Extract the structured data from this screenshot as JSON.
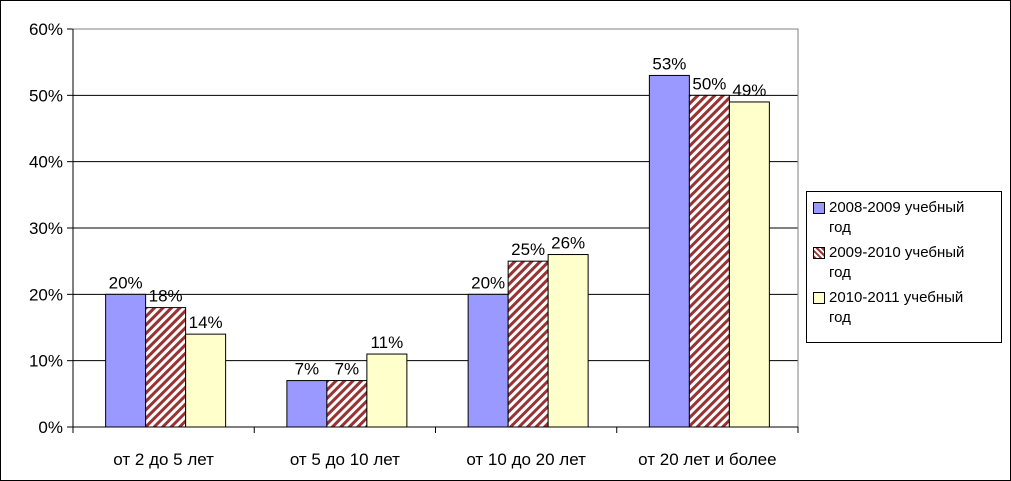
{
  "chart_data": {
    "type": "bar",
    "categories": [
      "от 2 до 5 лет",
      "от 5 до 10 лет",
      "от 10 до 20 лет",
      "от 20 лет и более"
    ],
    "series": [
      {
        "name": "2008-2009 учебный год",
        "values": [
          20,
          7,
          20,
          53
        ],
        "labels": [
          "20%",
          "7%",
          "20%",
          "53%"
        ],
        "color": "#9999FF",
        "pattern": "solid"
      },
      {
        "name": "2009-2010 учебный год",
        "values": [
          18,
          7,
          25,
          50
        ],
        "labels": [
          "18%",
          "7%",
          "25%",
          "50%"
        ],
        "color": "#993333",
        "pattern": "diagonal-stripes"
      },
      {
        "name": "2010-2011 учебный год",
        "values": [
          14,
          11,
          26,
          49
        ],
        "labels": [
          "14%",
          "11%",
          "26%",
          "49%"
        ],
        "color": "#FFFFCC",
        "pattern": "solid"
      }
    ],
    "yticks": [
      "0%",
      "10%",
      "20%",
      "30%",
      "40%",
      "50%",
      "60%"
    ],
    "ylim": [
      0,
      60
    ],
    "grid": true,
    "legend_position": "right"
  }
}
